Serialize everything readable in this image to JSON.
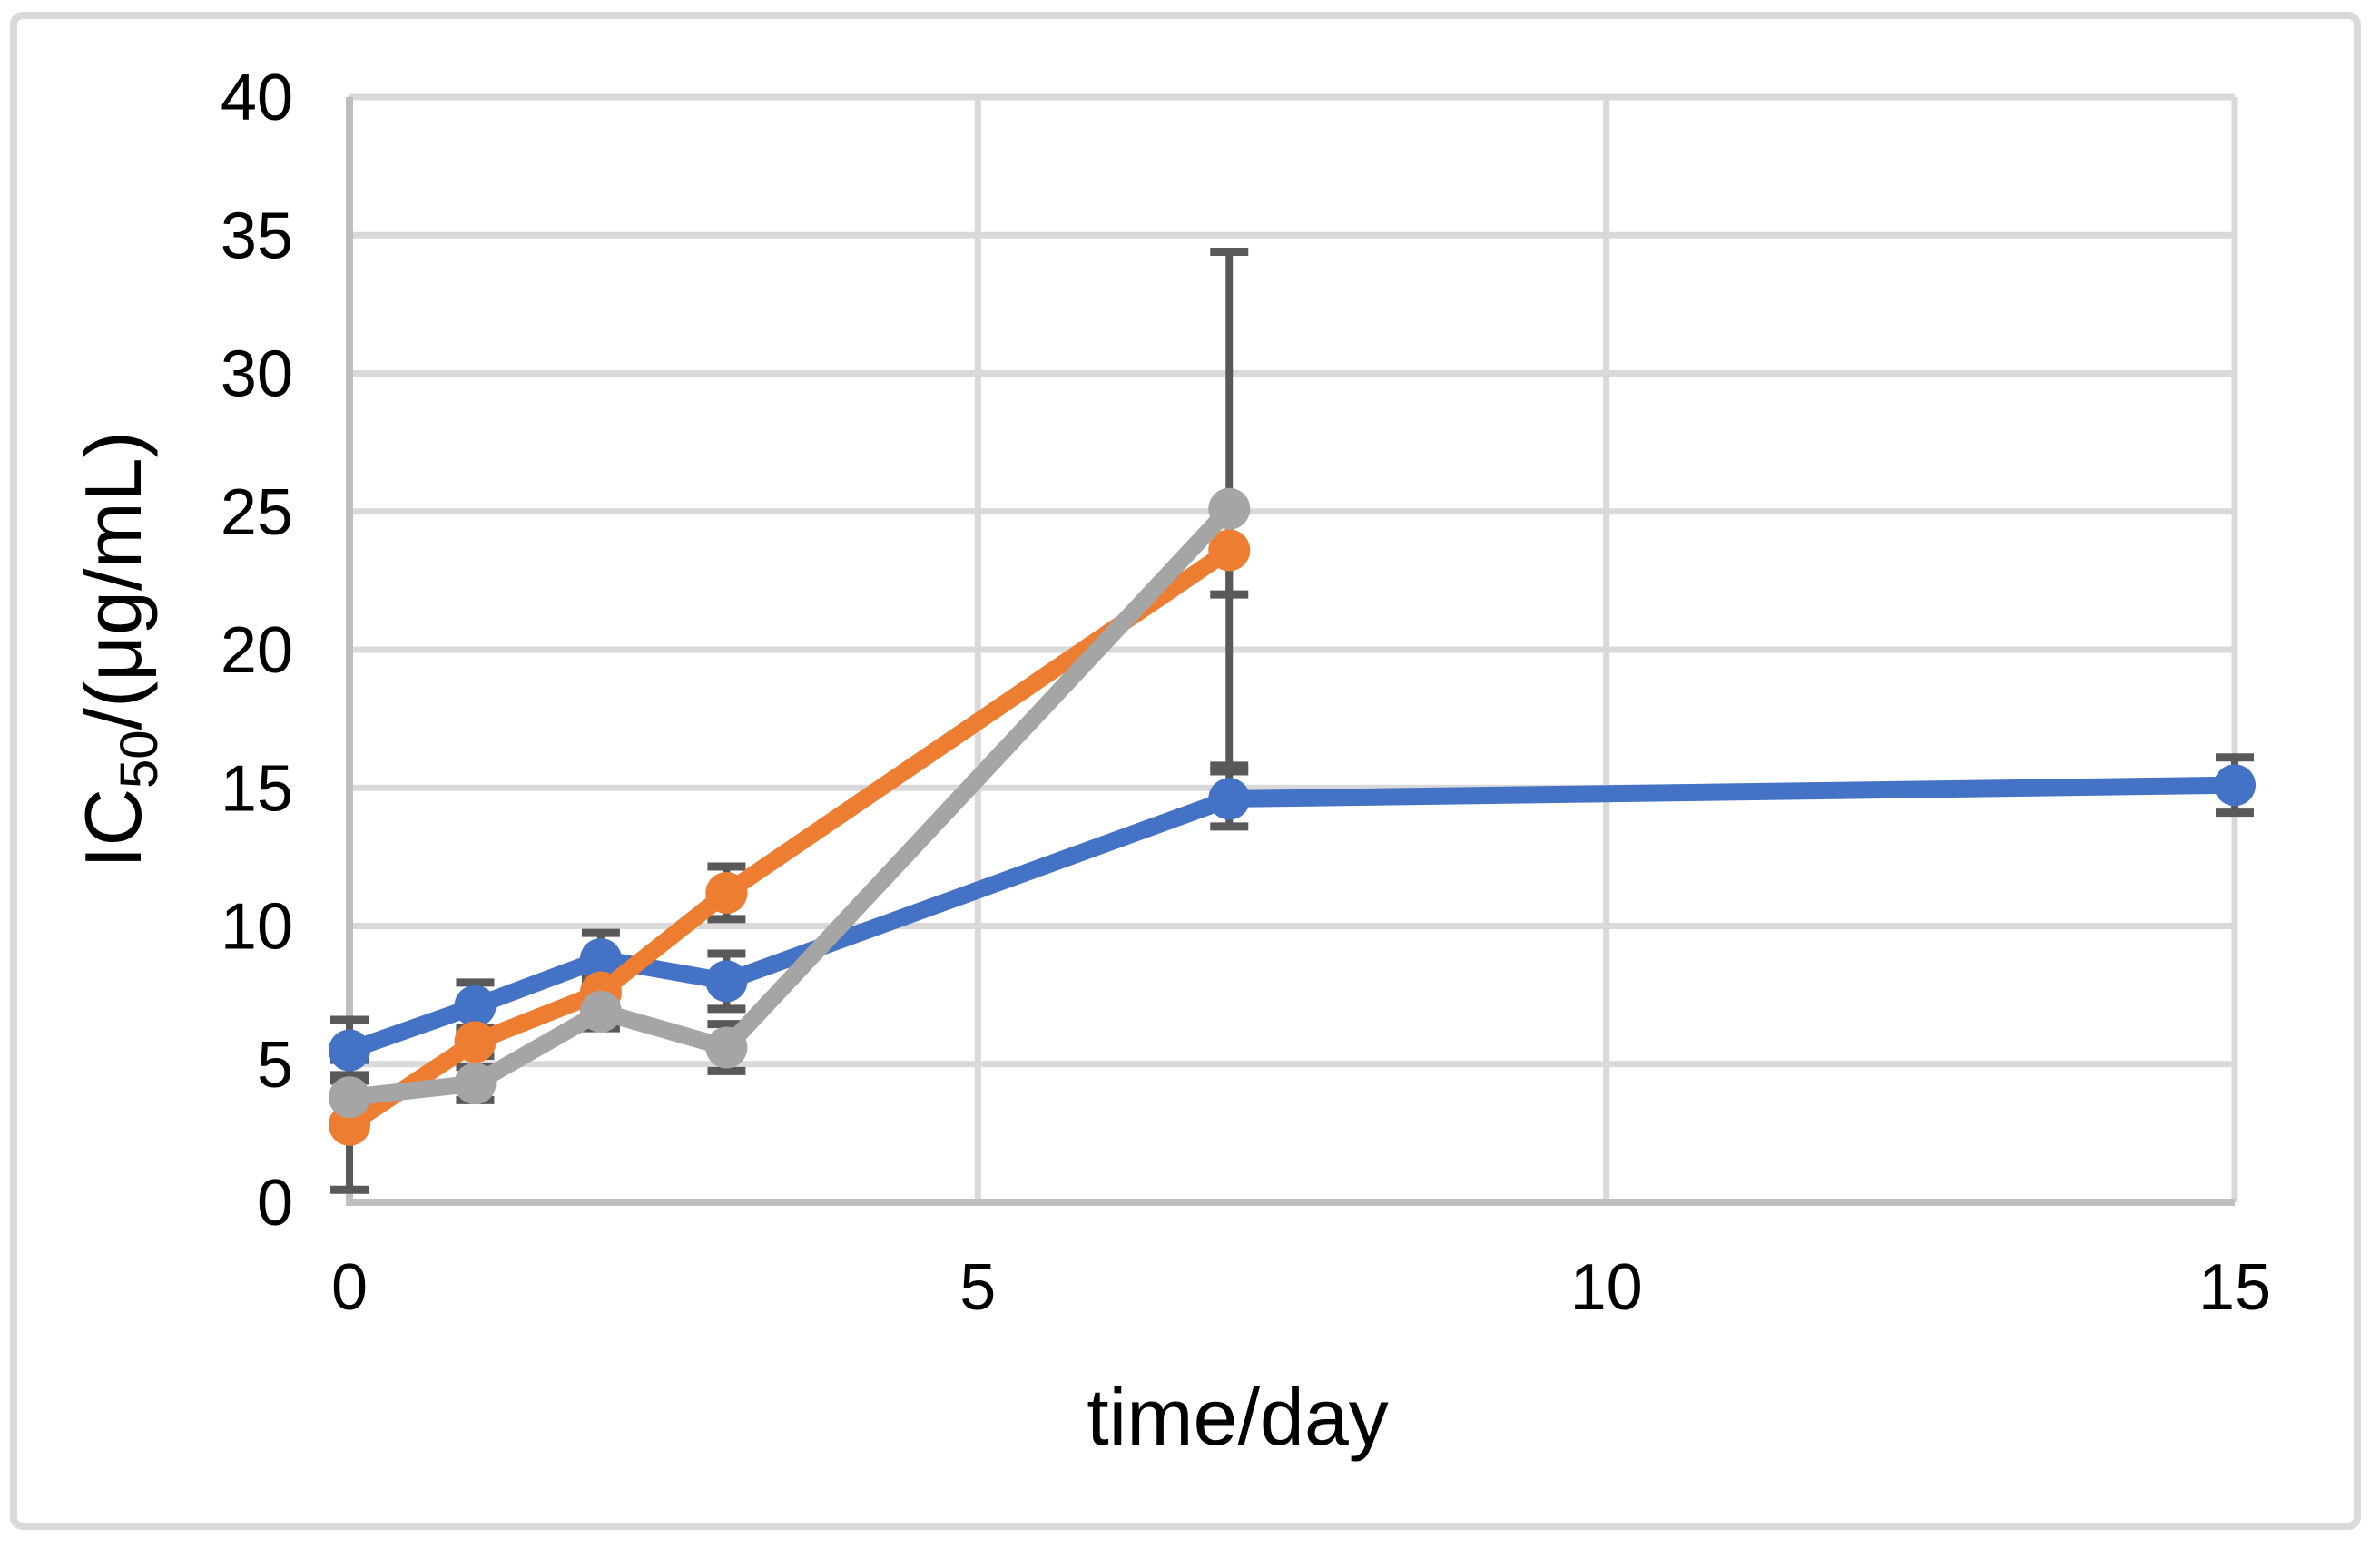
{
  "chart_data": {
    "type": "line",
    "title": "",
    "xlabel": "time/day",
    "ylabel": "IC50/(μg/mL)",
    "ylabel_parts": {
      "base": "IC",
      "sub": "50",
      "rest": "/(μg/mL)"
    },
    "xlim": [
      0,
      15
    ],
    "ylim": [
      0,
      40
    ],
    "x_ticks": [
      0,
      5,
      10,
      15
    ],
    "y_ticks": [
      0,
      5,
      10,
      15,
      20,
      25,
      30,
      35,
      40
    ],
    "grid": true,
    "legend_position": "none",
    "error_bars": true,
    "series": [
      {
        "name": "blue",
        "color": "#4472C4",
        "x": [
          0,
          1,
          2,
          3,
          7,
          15
        ],
        "y": [
          5.5,
          7.1,
          8.8,
          8.0,
          14.6,
          15.1
        ],
        "yerr": [
          1.1,
          0.85,
          0.95,
          1.0,
          1.0,
          1.0
        ]
      },
      {
        "name": "orange",
        "color": "#ED7D31",
        "x": [
          0,
          1,
          2,
          3,
          7
        ],
        "y": [
          2.8,
          5.8,
          7.6,
          11.2,
          23.6
        ],
        "yerr": [
          2.35,
          0.5,
          0.5,
          0.95,
          1.6
        ]
      },
      {
        "name": "gray",
        "color": "#A5A5A5",
        "x": [
          0,
          1,
          2,
          3,
          7
        ],
        "y": [
          3.8,
          4.3,
          6.9,
          5.6,
          25.1
        ],
        "yerr": [
          0.8,
          0.6,
          0.6,
          0.85,
          9.3
        ]
      }
    ],
    "colors": {
      "gridline": "#D9D9D9",
      "axis_line": "#BFBFBF",
      "error_bar": "#595959",
      "chart_border": "#D9D9D9",
      "background": "#FFFFFF"
    }
  }
}
